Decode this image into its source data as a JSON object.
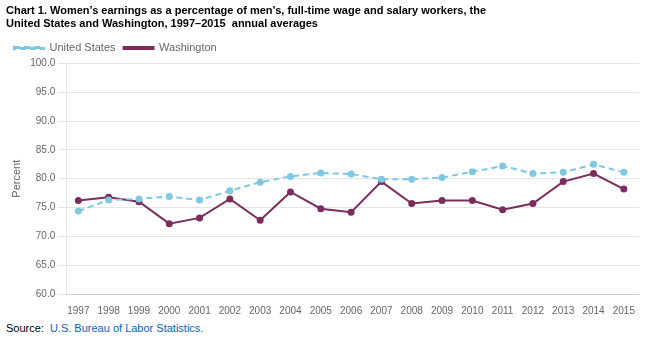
{
  "chart_data": {
    "type": "line",
    "title": [
      "Chart 1. Women’s earnings as a percentage of men’s, full-time wage and salary workers, the",
      "United States and Washington, 1997–2015  annual averages"
    ],
    "ylabel": "Percent",
    "x": [
      1997,
      1998,
      1999,
      2000,
      2001,
      2002,
      2003,
      2004,
      2005,
      2006,
      2007,
      2008,
      2009,
      2010,
      2011,
      2012,
      2013,
      2014,
      2015
    ],
    "series": [
      {
        "name": "United States",
        "color": "#7ec8e3",
        "line_style": "dashed",
        "marker": "circle",
        "values": [
          74.4,
          76.3,
          76.5,
          76.9,
          76.3,
          77.9,
          79.4,
          80.4,
          81.0,
          80.8,
          79.9,
          79.9,
          80.2,
          81.2,
          82.2,
          80.9,
          81.1,
          82.5,
          81.1
        ]
      },
      {
        "name": "Washington",
        "color": "#7B2D5E",
        "line_style": "solid",
        "marker": "circle",
        "values": [
          76.2,
          76.8,
          76.0,
          72.2,
          73.2,
          76.5,
          72.8,
          77.7,
          74.8,
          74.2,
          79.5,
          75.7,
          76.2,
          76.2,
          74.6,
          75.7,
          79.5,
          80.9,
          78.2
        ]
      }
    ],
    "xlim": [
      1996.6,
      2015.5
    ],
    "xticks": [
      1997,
      1998,
      1999,
      2000,
      2001,
      2002,
      2003,
      2004,
      2005,
      2006,
      2007,
      2008,
      2009,
      2010,
      2011,
      2012,
      2013,
      2014,
      2015
    ],
    "ylim": [
      60.0,
      100.0
    ],
    "yticks": [
      {
        "value": 60.0,
        "label": "60.0"
      },
      {
        "value": 65.0,
        "label": "65.0"
      },
      {
        "value": 70.0,
        "label": "70.0"
      },
      {
        "value": 75.0,
        "label": "75.0"
      },
      {
        "value": 80.0,
        "label": "80.0"
      },
      {
        "value": 85.0,
        "label": "85.0"
      },
      {
        "value": 90.0,
        "label": "90.0"
      },
      {
        "value": 95.0,
        "label": "95.0"
      },
      {
        "value": 100.0,
        "label": "100.0"
      }
    ],
    "grid": "y",
    "legend": "upper left",
    "annotations": [
      {
        "text": "Source:"
      },
      {
        "text": "U.S. Bureau of Labor Statistics.",
        "color": "#0563C1"
      }
    ]
  }
}
